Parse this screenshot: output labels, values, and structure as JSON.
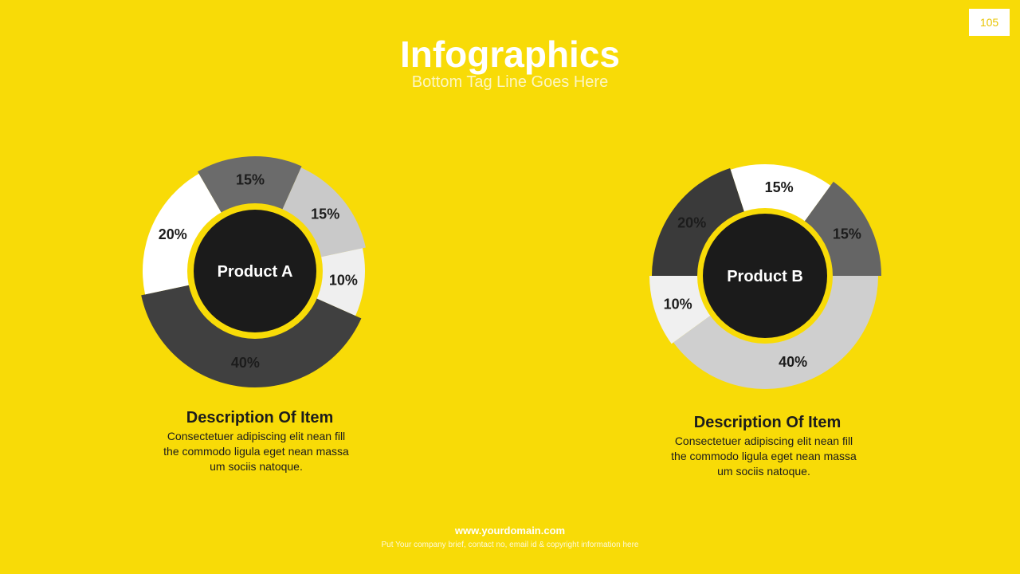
{
  "page_number": "105",
  "title": "Infographics",
  "subtitle": "Bottom Tag Line Goes Here",
  "colors": {
    "background": "#F8DB07",
    "center": "#1B1B1B",
    "ring": "#F8DB07"
  },
  "chart_data": [
    {
      "type": "pie",
      "center_label": "Product A",
      "slices": [
        {
          "label": "15%",
          "value": 15,
          "color": "#6B6B6B"
        },
        {
          "label": "15%",
          "value": 15,
          "color": "#C9C9C9"
        },
        {
          "label": "10%",
          "value": 10,
          "color": "#EFEFEF"
        },
        {
          "label": "40%",
          "value": 40,
          "color": "#404040"
        },
        {
          "label": "20%",
          "value": 20,
          "color": "#FFFFFF"
        }
      ]
    },
    {
      "type": "pie",
      "center_label": "Product B",
      "slices": [
        {
          "label": "15%",
          "value": 15,
          "color": "#FFFFFF"
        },
        {
          "label": "15%",
          "value": 15,
          "color": "#656565"
        },
        {
          "label": "40%",
          "value": 40,
          "color": "#CFCFCF"
        },
        {
          "label": "10%",
          "value": 10,
          "color": "#F0F0F0"
        },
        {
          "label": "20%",
          "value": 20,
          "color": "#3A3A3A"
        }
      ]
    }
  ],
  "items": [
    {
      "heading": "Description Of Item",
      "body": "Consectetuer adipiscing elit nean fill the commodo ligula eget nean massa um sociis natoque."
    },
    {
      "heading": "Description Of Item",
      "body": "Consectetuer adipiscing elit nean fill the commodo ligula eget nean massa um sociis natoque."
    }
  ],
  "footer": {
    "domain": "www.yourdomain.com",
    "note": "Put Your company brief, contact no, email id  & copyright information here"
  }
}
